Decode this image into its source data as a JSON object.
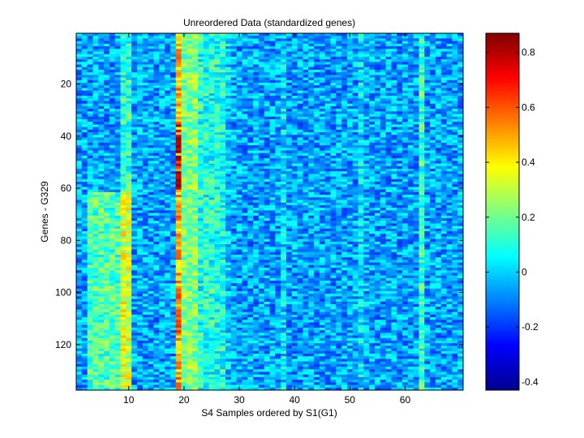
{
  "chart_data": {
    "type": "heatmap",
    "title": "Unreordered Data (standardized genes)",
    "xlabel": "S4 Samples ordered by S1(G1)",
    "ylabel": "Genes - G329",
    "n_cols": 70,
    "n_rows": 137,
    "xlim": [
      0.5,
      70.5
    ],
    "ylim": [
      0.5,
      137.5
    ],
    "x_ticks": [
      10,
      20,
      30,
      40,
      50,
      60
    ],
    "x_tick_labels": [
      "10",
      "20",
      "30",
      "40",
      "50",
      "60"
    ],
    "y_ticks": [
      20,
      40,
      60,
      80,
      100,
      120
    ],
    "y_tick_labels": [
      "20",
      "40",
      "60",
      "80",
      "100",
      "120"
    ],
    "colorbar": {
      "colormap": "jet",
      "clim": [
        -0.43,
        0.87
      ],
      "ticks": [
        -0.4,
        -0.2,
        0,
        0.2,
        0.4,
        0.6,
        0.8
      ],
      "tick_labels": [
        "-0.4",
        "-0.2",
        "0",
        "0.2",
        "0.4",
        "0.6",
        "0.8"
      ]
    },
    "base_level": -0.06,
    "noise_amplitude": 0.14,
    "column_offsets": [
      {
        "columns": [
          3,
          4,
          5,
          6,
          7,
          8,
          9,
          10
        ],
        "rows": [
          62,
          137
        ],
        "offset": 0.22
      },
      {
        "columns": [
          9,
          10
        ],
        "rows": [
          1,
          137
        ],
        "offset": 0.18
      },
      {
        "columns": [
          19
        ],
        "rows": [
          1,
          137
        ],
        "offset": 0.55
      },
      {
        "columns": [
          20,
          21,
          22
        ],
        "rows": [
          1,
          137
        ],
        "offset": 0.28
      },
      {
        "columns": [
          23,
          24,
          25,
          26,
          27
        ],
        "rows": [
          1,
          137
        ],
        "offset": 0.16
      },
      {
        "columns": [
          28
        ],
        "rows": [
          1,
          137
        ],
        "offset": 0.05
      },
      {
        "columns": [
          63
        ],
        "rows": [
          1,
          137
        ],
        "offset": 0.2
      },
      {
        "columns": [
          38,
          52
        ],
        "rows": [
          1,
          137
        ],
        "offset": 0.08
      }
    ],
    "hot_cells": [
      {
        "column": 19,
        "rows": [
          35,
          60
        ],
        "value": 0.8
      },
      {
        "column": 19,
        "rows": [
          100,
          115
        ],
        "value": 0.6
      }
    ]
  }
}
